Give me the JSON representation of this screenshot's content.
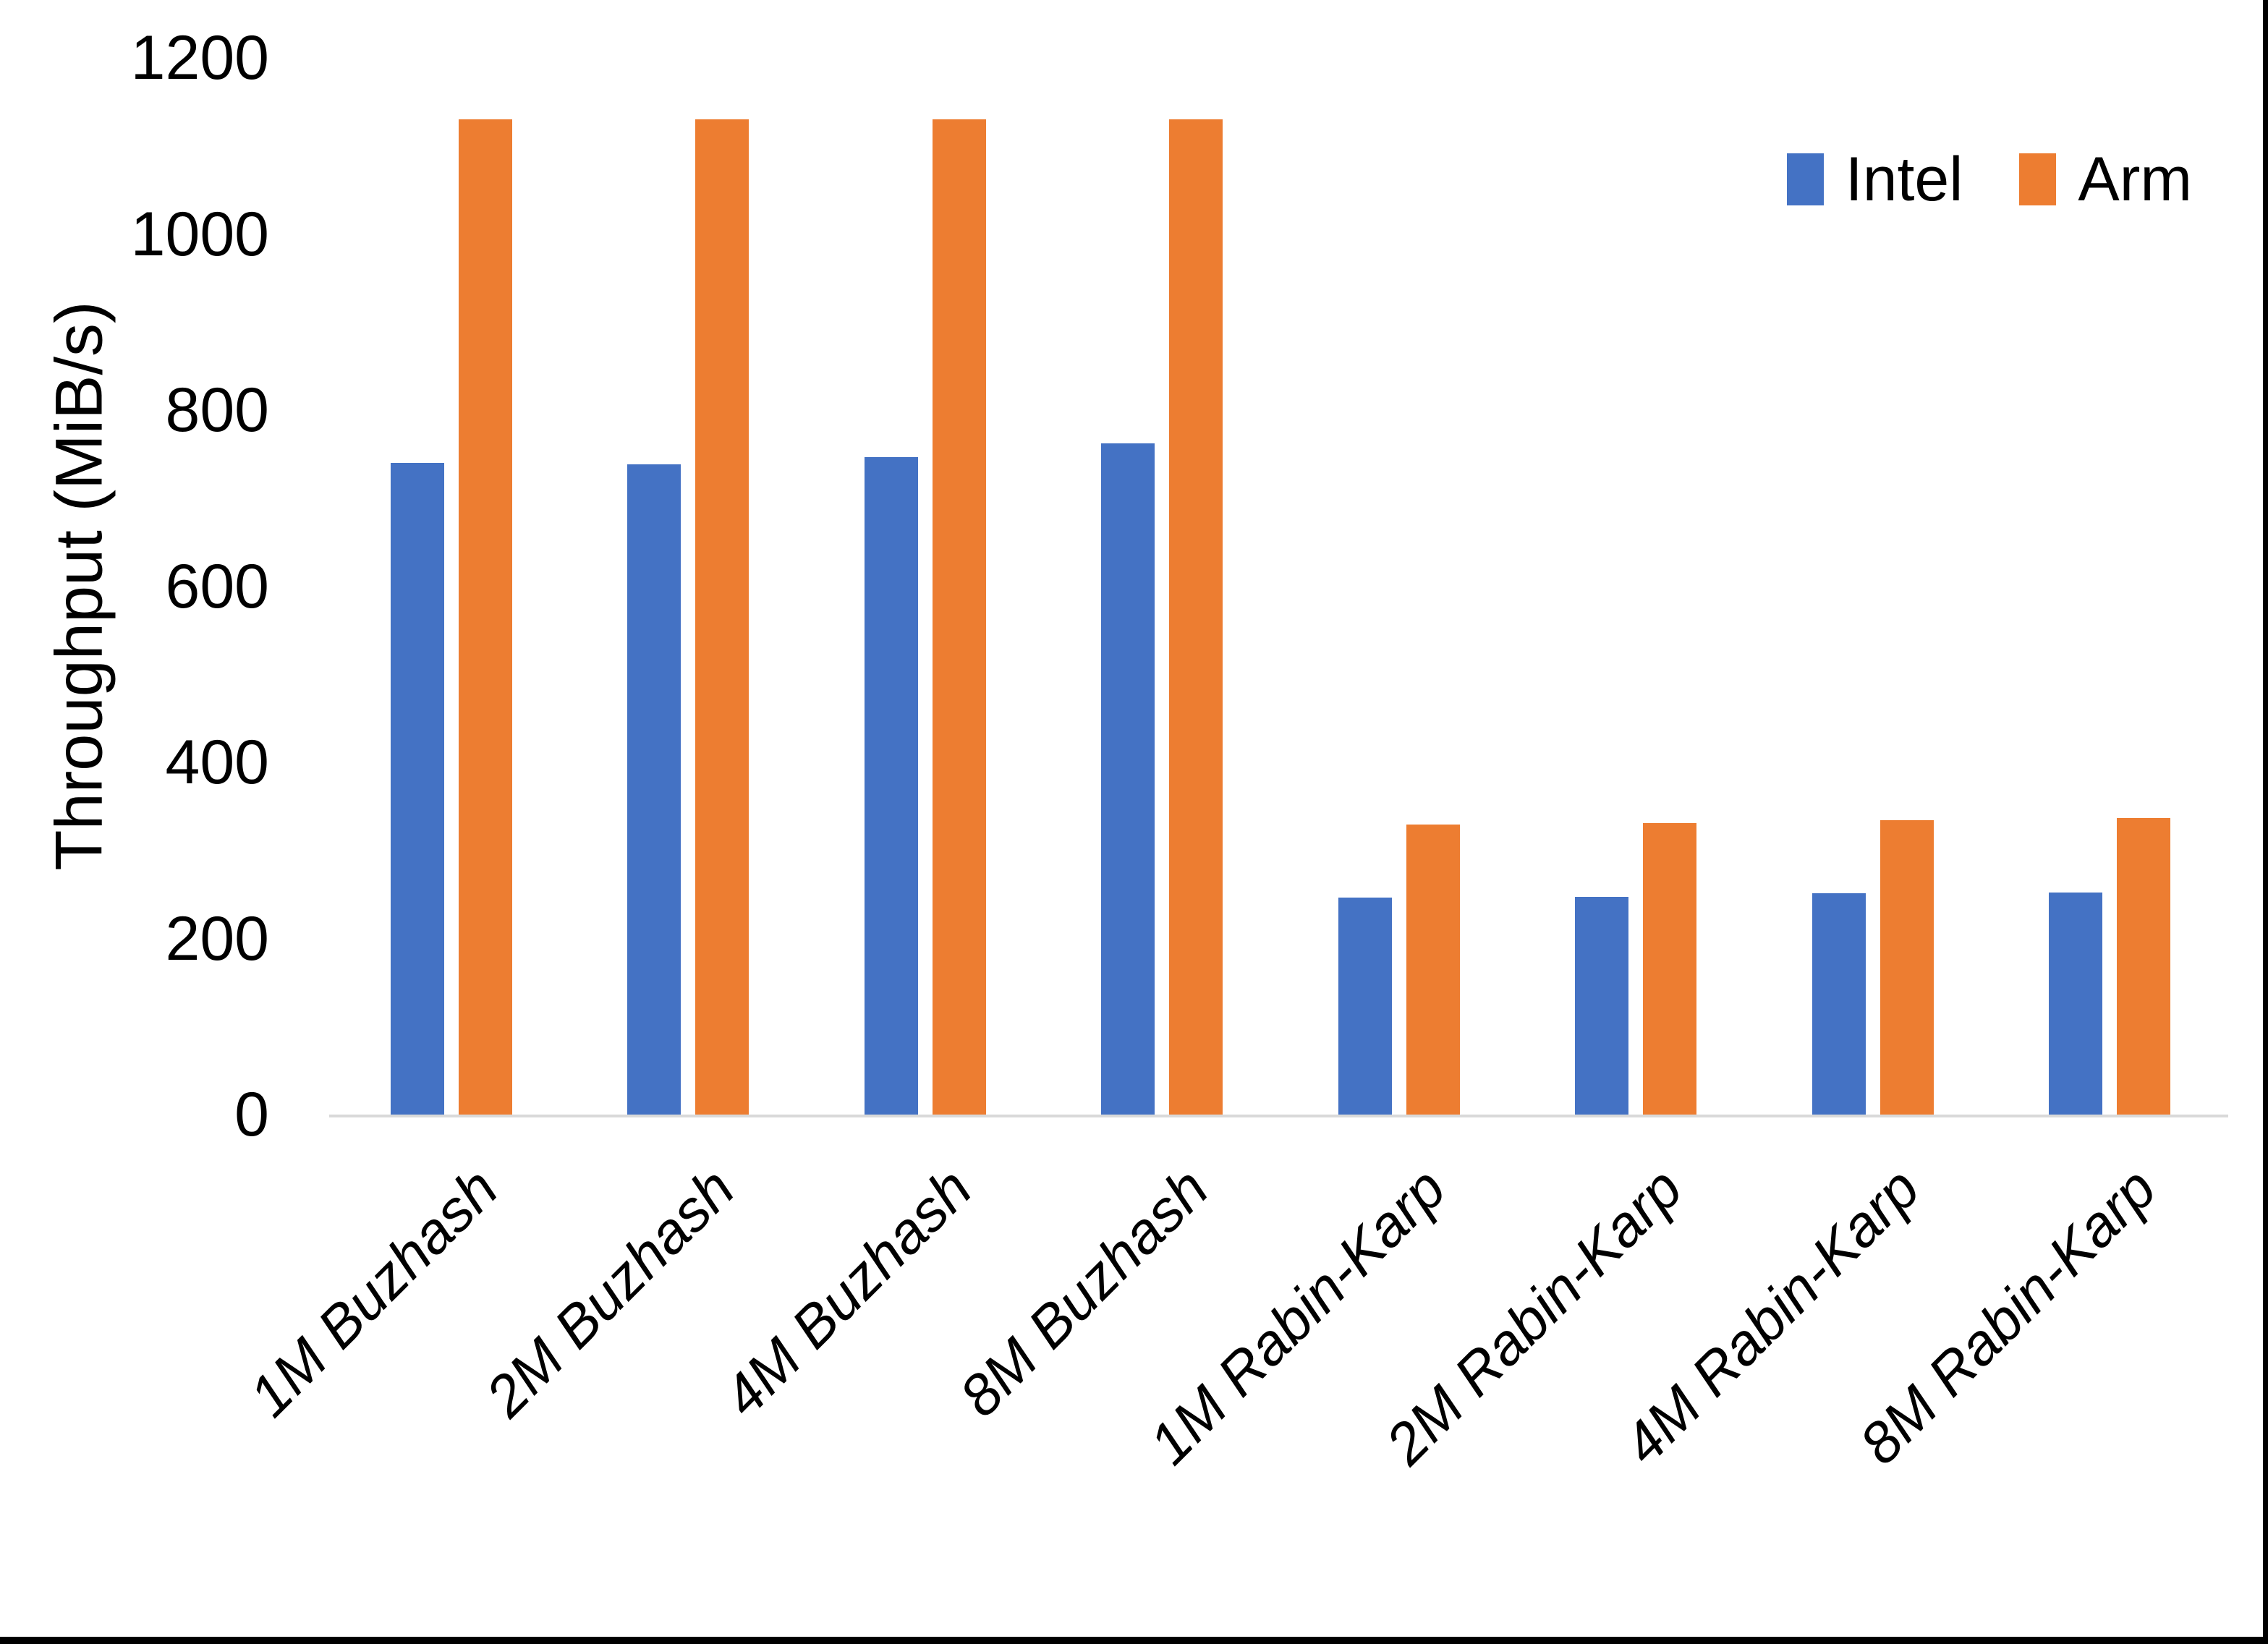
{
  "page": {
    "background": "#FFFFFF",
    "edge_color": "#000000"
  },
  "chart_data": {
    "type": "bar",
    "title": "",
    "xlabel": "",
    "ylabel": "Throughput (MiB/s)",
    "ylim": [
      0,
      1200
    ],
    "yticks": [
      0,
      200,
      400,
      600,
      800,
      1000,
      1200
    ],
    "grid": false,
    "axis_line_color": "#D9D9D9",
    "text_color": "#000000",
    "legend_position": "top-right",
    "categories": [
      "1M Buzhash",
      "2M Buzhash",
      "4M Buzhash",
      "8M Buzhash",
      "1M Rabin-Karp",
      "2M Rabin-Karp",
      "4M Rabin-Karp",
      "8M Rabin-Karp"
    ],
    "series": [
      {
        "name": "Intel",
        "color": "#4472C4",
        "values": [
          740,
          738,
          747,
          762,
          246,
          247,
          251,
          252
        ]
      },
      {
        "name": "Arm",
        "color": "#ED7D31",
        "values": [
          1130,
          1130,
          1130,
          1130,
          329,
          331,
          334,
          337
        ]
      }
    ]
  }
}
